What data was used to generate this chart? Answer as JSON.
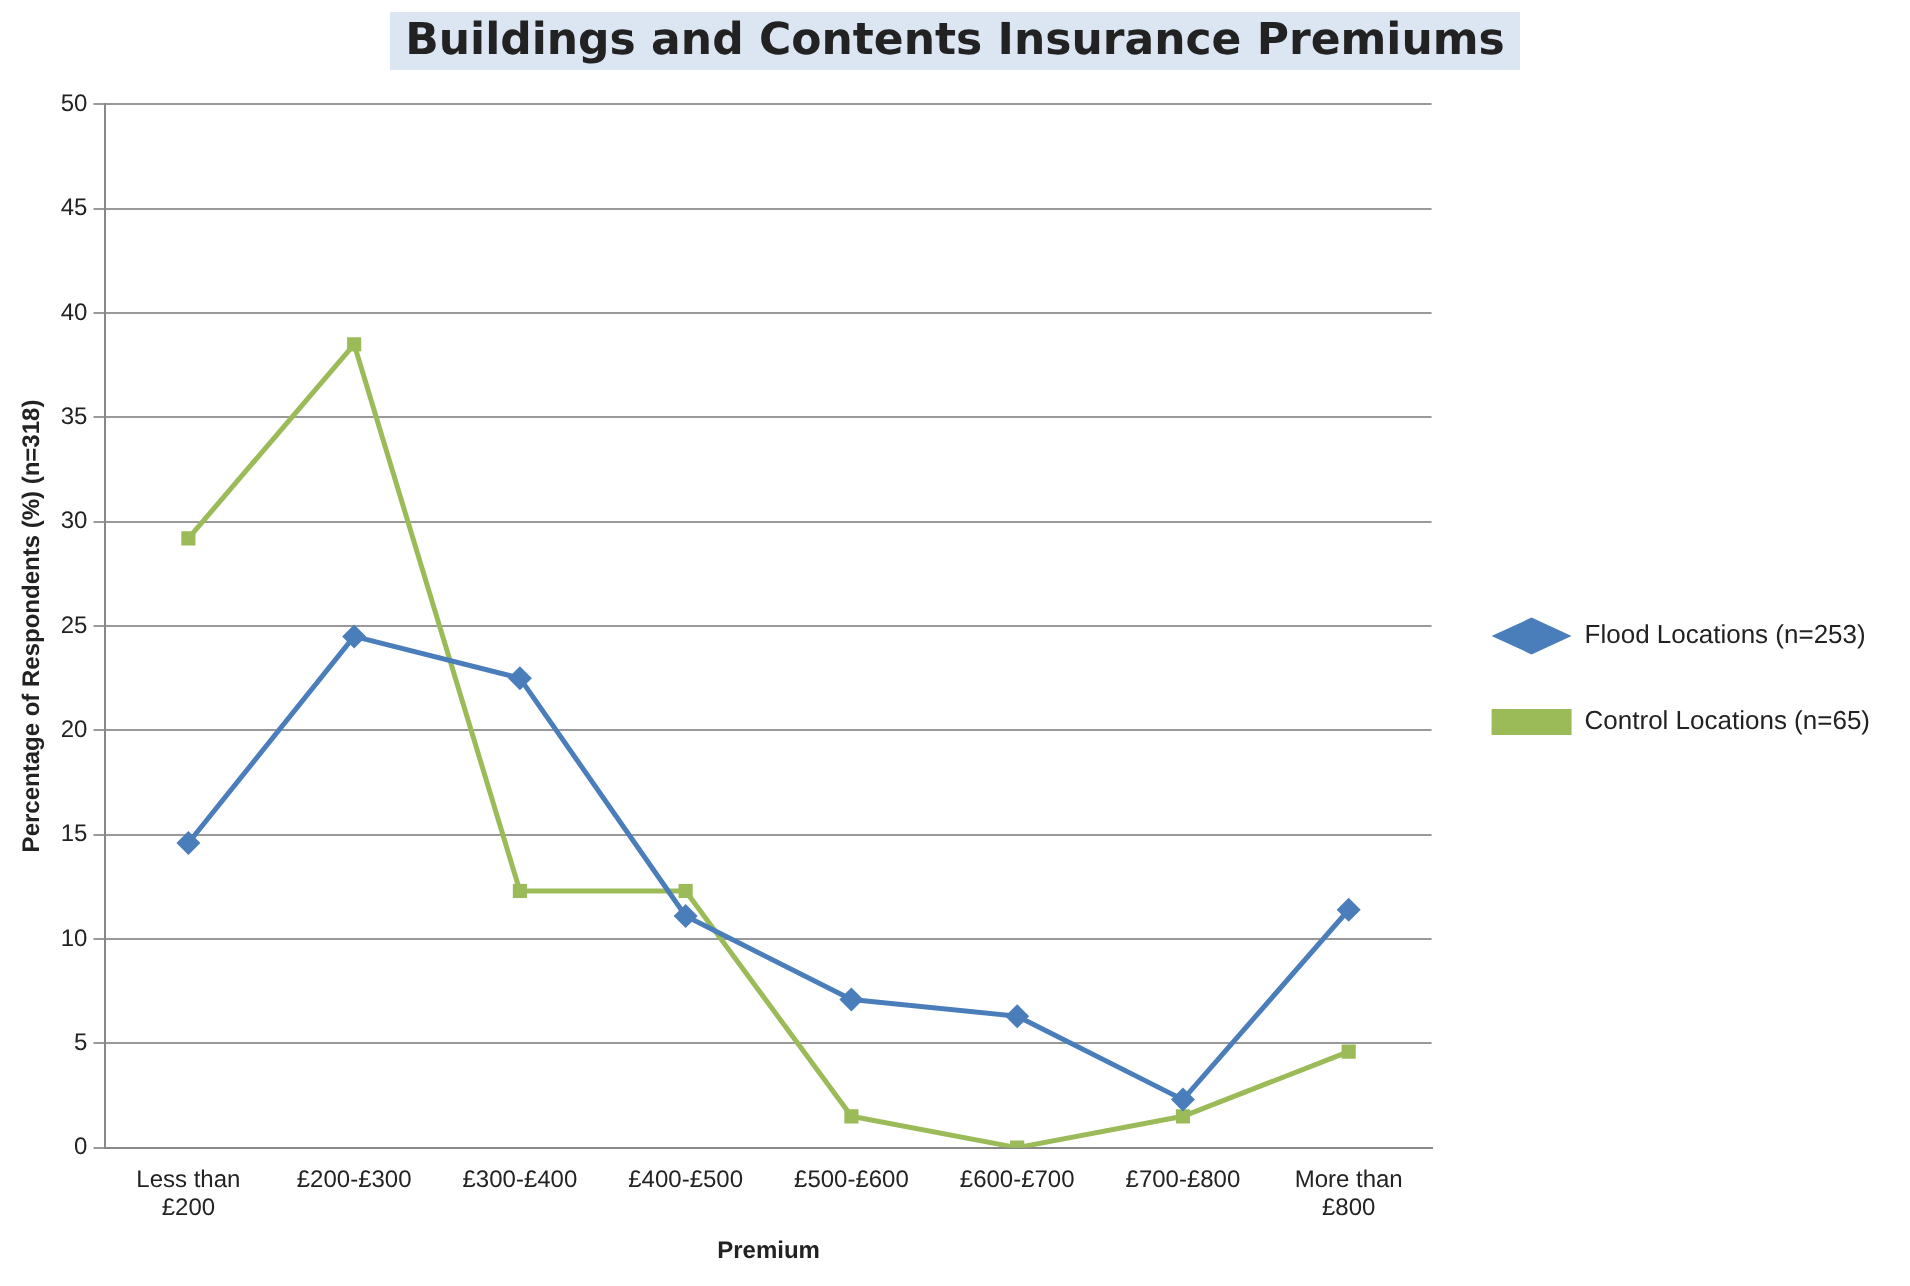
{
  "chart_data": {
    "type": "line",
    "title": "Buildings and Contents Insurance Premiums",
    "xlabel": "Premium",
    "ylabel": "Percentage of Respondents (%) (n=318)",
    "categories": [
      "Less than £200",
      "£200-£300",
      "£300-£400",
      "£400-£500",
      "£500-£600",
      "£600-£700",
      "£700-£800",
      "More than £800"
    ],
    "series": [
      {
        "name": "Flood Locations (n=253)",
        "color": "#4a7ebb",
        "marker": "diamond",
        "values": [
          14.6,
          24.5,
          22.5,
          11.1,
          7.1,
          6.3,
          2.3,
          11.4
        ]
      },
      {
        "name": "Control Locations (n=65)",
        "color": "#9bbb59",
        "marker": "square",
        "values": [
          29.2,
          38.5,
          12.3,
          12.3,
          1.5,
          0,
          1.5,
          4.6
        ]
      }
    ],
    "ylim": [
      0,
      50
    ],
    "yticks": [
      0,
      5,
      10,
      15,
      20,
      25,
      30,
      35,
      40,
      45,
      50
    ],
    "grid": "y",
    "legend": "right",
    "line_style": "solid"
  }
}
